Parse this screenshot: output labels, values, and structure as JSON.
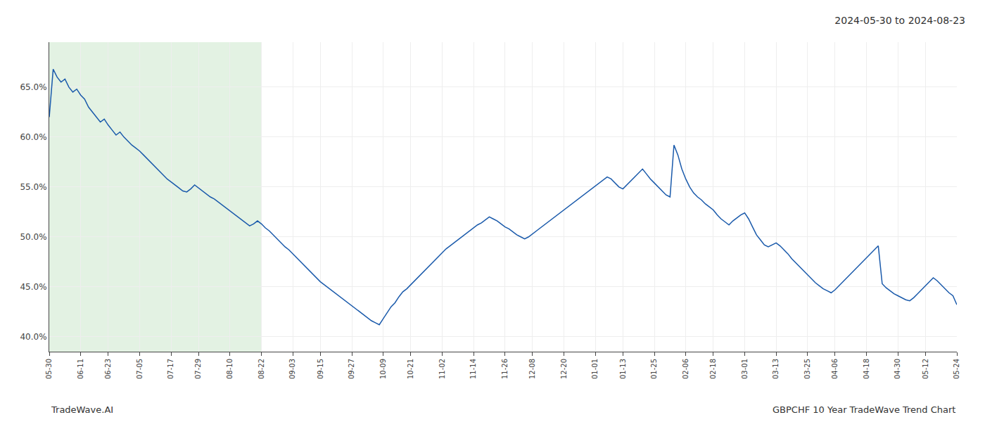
{
  "chart_data": {
    "type": "line",
    "title": "2024-05-30 to 2024-08-23",
    "annotations": [
      "TradeWave.AI",
      "GBPCHF 10 Year TradeWave Trend Chart"
    ],
    "color": "#1a5aab",
    "grid": true,
    "ylim": [
      0.385,
      0.695
    ],
    "yticks": [
      {
        "value": 0.4,
        "label": "40.0%"
      },
      {
        "value": 0.45,
        "label": "45.0%"
      },
      {
        "value": 0.5,
        "label": "50.0%"
      },
      {
        "value": 0.55,
        "label": "55.0%"
      },
      {
        "value": 0.6,
        "label": "60.0%"
      },
      {
        "value": 0.65,
        "label": "65.0%"
      }
    ],
    "spans": [
      {
        "from": "05-30",
        "to": "08-22",
        "color": "#c8e6c8"
      }
    ],
    "categories": [
      "05-30",
      null,
      null,
      null,
      null,
      null,
      null,
      null,
      "06-11",
      null,
      null,
      null,
      null,
      null,
      null,
      "06-23",
      null,
      null,
      null,
      null,
      null,
      null,
      null,
      "07-05",
      null,
      null,
      null,
      null,
      null,
      null,
      null,
      "07-17",
      null,
      null,
      null,
      null,
      null,
      null,
      "07-29",
      null,
      null,
      null,
      null,
      null,
      null,
      null,
      "08-10",
      null,
      null,
      null,
      null,
      null,
      null,
      null,
      "08-22",
      null,
      null,
      null,
      null,
      null,
      null,
      null,
      "09-03",
      null,
      null,
      null,
      null,
      null,
      null,
      "09-15",
      null,
      null,
      null,
      null,
      null,
      null,
      null,
      "09-27",
      null,
      null,
      null,
      null,
      null,
      null,
      null,
      "10-09",
      null,
      null,
      null,
      null,
      null,
      null,
      "10-21",
      null,
      null,
      null,
      null,
      null,
      null,
      null,
      "11-02",
      null,
      null,
      null,
      null,
      null,
      null,
      null,
      "11-14",
      null,
      null,
      null,
      null,
      null,
      null,
      null,
      "11-26",
      null,
      null,
      null,
      null,
      null,
      null,
      "12-08",
      null,
      null,
      null,
      null,
      null,
      null,
      null,
      "12-20",
      null,
      null,
      null,
      null,
      null,
      null,
      null,
      "01-01",
      null,
      null,
      null,
      null,
      null,
      null,
      "01-13",
      null,
      null,
      null,
      null,
      null,
      null,
      null,
      "01-25",
      null,
      null,
      null,
      null,
      null,
      null,
      null,
      "02-06",
      null,
      null,
      null,
      null,
      null,
      null,
      "02-18",
      null,
      null,
      null,
      null,
      null,
      null,
      null,
      "03-01",
      null,
      null,
      null,
      null,
      null,
      null,
      null,
      "03-13",
      null,
      null,
      null,
      null,
      null,
      null,
      null,
      "03-25",
      null,
      null,
      null,
      null,
      null,
      null,
      "04-06",
      null,
      null,
      null,
      null,
      null,
      null,
      null,
      "04-18",
      null,
      null,
      null,
      null,
      null,
      null,
      null,
      "04-30",
      null,
      null,
      null,
      null,
      null,
      null,
      "05-12",
      null,
      null,
      null,
      null,
      null,
      null,
      null,
      "05-24"
    ],
    "values": [
      0.62,
      0.668,
      0.66,
      0.655,
      0.658,
      0.65,
      0.645,
      0.648,
      0.642,
      0.638,
      0.63,
      0.625,
      0.62,
      0.615,
      0.618,
      0.612,
      0.607,
      0.602,
      0.605,
      0.6,
      0.596,
      0.592,
      0.589,
      0.586,
      0.582,
      0.578,
      0.574,
      0.57,
      0.566,
      0.562,
      0.558,
      0.555,
      0.552,
      0.549,
      0.546,
      0.545,
      0.548,
      0.552,
      0.549,
      0.546,
      0.543,
      0.54,
      0.538,
      0.535,
      0.532,
      0.529,
      0.526,
      0.523,
      0.52,
      0.517,
      0.514,
      0.511,
      0.513,
      0.516,
      0.513,
      0.509,
      0.506,
      0.502,
      0.498,
      0.494,
      0.49,
      0.487,
      0.483,
      0.479,
      0.475,
      0.471,
      0.467,
      0.463,
      0.459,
      0.455,
      0.452,
      0.449,
      0.446,
      0.443,
      0.44,
      0.437,
      0.434,
      0.431,
      0.428,
      0.425,
      0.422,
      0.419,
      0.416,
      0.414,
      0.412,
      0.418,
      0.424,
      0.43,
      0.434,
      0.44,
      0.445,
      0.448,
      0.452,
      0.456,
      0.46,
      0.464,
      0.468,
      0.472,
      0.476,
      0.48,
      0.484,
      0.488,
      0.491,
      0.494,
      0.497,
      0.5,
      0.503,
      0.506,
      0.509,
      0.512,
      0.514,
      0.517,
      0.52,
      0.518,
      0.516,
      0.513,
      0.51,
      0.508,
      0.505,
      0.502,
      0.5,
      0.498,
      0.5,
      0.503,
      0.506,
      0.509,
      0.512,
      0.515,
      0.518,
      0.521,
      0.524,
      0.527,
      0.53,
      0.533,
      0.536,
      0.539,
      0.542,
      0.545,
      0.548,
      0.551,
      0.554,
      0.557,
      0.56,
      0.558,
      0.554,
      0.55,
      0.548,
      0.552,
      0.556,
      0.56,
      0.564,
      0.568,
      0.563,
      0.558,
      0.554,
      0.55,
      0.546,
      0.542,
      0.54,
      0.592,
      0.582,
      0.568,
      0.558,
      0.55,
      0.544,
      0.54,
      0.537,
      0.533,
      0.53,
      0.527,
      0.522,
      0.518,
      0.515,
      0.512,
      0.516,
      0.519,
      0.522,
      0.524,
      0.518,
      0.51,
      0.502,
      0.497,
      0.492,
      0.49,
      0.492,
      0.494,
      0.491,
      0.487,
      0.483,
      0.478,
      0.474,
      0.47,
      0.466,
      0.462,
      0.458,
      0.454,
      0.451,
      0.448,
      0.446,
      0.444,
      0.447,
      0.451,
      0.455,
      0.459,
      0.463,
      0.467,
      0.471,
      0.475,
      0.479,
      0.483,
      0.487,
      0.491,
      0.453,
      0.449,
      0.446,
      0.443,
      0.441,
      0.439,
      0.437,
      0.436,
      0.439,
      0.443,
      0.447,
      0.451,
      0.455,
      0.459,
      0.456,
      0.452,
      0.448,
      0.444,
      0.441,
      0.432
    ]
  }
}
